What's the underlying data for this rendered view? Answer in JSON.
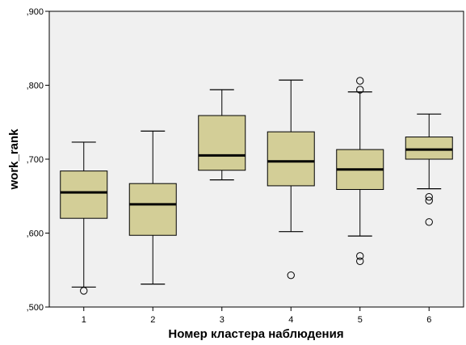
{
  "chart_data": {
    "type": "boxplot",
    "title": "",
    "xlabel": "Номер кластера наблюдения",
    "ylabel": "work_rank",
    "ylim": [
      0.5,
      0.9
    ],
    "y_ticks": [
      0.5,
      0.6,
      0.7,
      0.8,
      0.9
    ],
    "y_tick_labels": [
      ",500",
      ",600",
      ",700",
      ",800",
      ",900"
    ],
    "categories": [
      "1",
      "2",
      "3",
      "4",
      "5",
      "6"
    ],
    "boxes": [
      {
        "category": "1",
        "whisker_low": 0.527,
        "q1": 0.62,
        "median": 0.655,
        "q3": 0.684,
        "whisker_high": 0.723,
        "outliers": [
          0.522
        ]
      },
      {
        "category": "2",
        "whisker_low": 0.531,
        "q1": 0.597,
        "median": 0.639,
        "q3": 0.667,
        "whisker_high": 0.738,
        "outliers": []
      },
      {
        "category": "3",
        "whisker_low": 0.672,
        "q1": 0.685,
        "median": 0.705,
        "q3": 0.759,
        "whisker_high": 0.794,
        "outliers": []
      },
      {
        "category": "4",
        "whisker_low": 0.602,
        "q1": 0.664,
        "median": 0.697,
        "q3": 0.737,
        "whisker_high": 0.807,
        "outliers": [
          0.543
        ]
      },
      {
        "category": "5",
        "whisker_low": 0.596,
        "q1": 0.659,
        "median": 0.686,
        "q3": 0.713,
        "whisker_high": 0.791,
        "outliers": [
          0.806,
          0.794,
          0.569,
          0.562
        ]
      },
      {
        "category": "6",
        "whisker_low": 0.66,
        "q1": 0.7,
        "median": 0.713,
        "q3": 0.73,
        "whisker_high": 0.761,
        "outliers": [
          0.649,
          0.644,
          0.615
        ]
      }
    ],
    "grid": false,
    "colors": {
      "plot_background": "#F0F0F0",
      "box_fill": "#D3CE97",
      "stroke": "#000000",
      "page_background": "#FFFFFF"
    }
  }
}
